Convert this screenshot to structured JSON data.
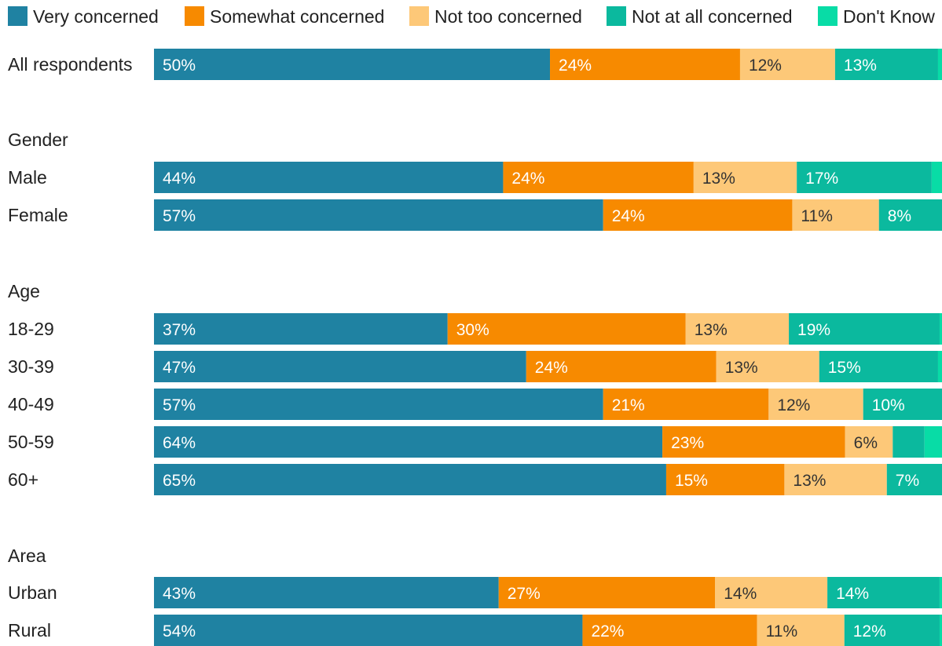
{
  "chart_data": {
    "type": "bar",
    "orientation": "horizontal",
    "stacked": true,
    "xlim": [
      0,
      100
    ],
    "unit": "%",
    "legend_position": "top",
    "grid": false,
    "series": [
      {
        "name": "Very concerned",
        "color": "#1f82a2",
        "label_color": "#ffffff"
      },
      {
        "name": "Somewhat concerned",
        "color": "#f78a00",
        "label_color": "#ffffff"
      },
      {
        "name": "Not too concerned",
        "color": "#fdc878",
        "label_color": "#333333"
      },
      {
        "name": "Not at all concerned",
        "color": "#0bb99e",
        "label_color": "#ffffff"
      },
      {
        "name": "Don't Know",
        "color": "#08dca6",
        "label_color": "#ffffff"
      }
    ],
    "groups": [
      {
        "label": "",
        "rows": [
          {
            "label": "All respondents",
            "values": [
              50,
              24,
              12,
              13,
              0.5
            ],
            "labels": [
              "50%",
              "24%",
              "12%",
              "13%",
              ""
            ]
          }
        ]
      },
      {
        "label": "Gender",
        "rows": [
          {
            "label": "Male",
            "values": [
              44,
              24,
              13,
              17,
              1.3
            ],
            "labels": [
              "44%",
              "24%",
              "13%",
              "17%",
              ""
            ]
          },
          {
            "label": "Female",
            "values": [
              57,
              24,
              11,
              8,
              0
            ],
            "labels": [
              "57%",
              "24%",
              "11%",
              "8%",
              ""
            ]
          }
        ]
      },
      {
        "label": "Age",
        "rows": [
          {
            "label": "18-29",
            "values": [
              37,
              30,
              13,
              19,
              0.3
            ],
            "labels": [
              "37%",
              "30%",
              "13%",
              "19%",
              ""
            ]
          },
          {
            "label": "30-39",
            "values": [
              47,
              24,
              13,
              15,
              0.5
            ],
            "labels": [
              "47%",
              "24%",
              "13%",
              "15%",
              ""
            ]
          },
          {
            "label": "40-49",
            "values": [
              57,
              21,
              12,
              10,
              0
            ],
            "labels": [
              "57%",
              "21%",
              "12%",
              "10%",
              ""
            ]
          },
          {
            "label": "50-59",
            "values": [
              64,
              23,
              6,
              4,
              2.2
            ],
            "labels": [
              "64%",
              "23%",
              "6%",
              "",
              ""
            ]
          },
          {
            "label": "60+",
            "values": [
              65,
              15,
              13,
              7,
              0
            ],
            "labels": [
              "65%",
              "15%",
              "13%",
              "7%",
              ""
            ]
          }
        ]
      },
      {
        "label": "Area",
        "rows": [
          {
            "label": "Urban",
            "values": [
              43,
              27,
              14,
              14,
              0.3
            ],
            "labels": [
              "43%",
              "27%",
              "14%",
              "14%",
              ""
            ]
          },
          {
            "label": "Rural",
            "values": [
              54,
              22,
              11,
              12,
              0.3
            ],
            "labels": [
              "54%",
              "22%",
              "11%",
              "12%",
              ""
            ]
          }
        ]
      }
    ]
  }
}
